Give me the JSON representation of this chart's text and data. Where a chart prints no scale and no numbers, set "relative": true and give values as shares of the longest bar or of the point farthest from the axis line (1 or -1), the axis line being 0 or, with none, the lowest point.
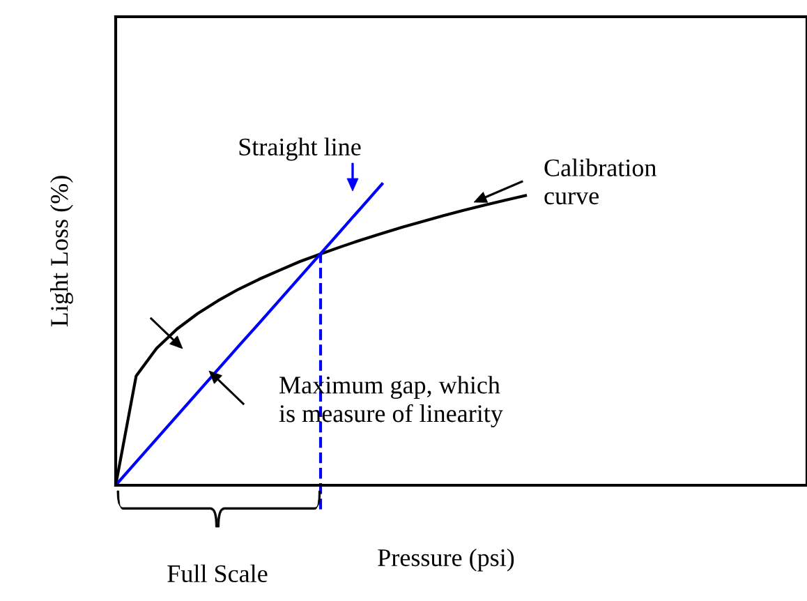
{
  "chart_data": {
    "type": "line",
    "relative": true,
    "xlabel": "Pressure (psi)",
    "ylabel": "Light Loss (%)",
    "categories": [
      null,
      null,
      null,
      null,
      null,
      null,
      null,
      null,
      null,
      null,
      null,
      null,
      null,
      null,
      null,
      null,
      null,
      null,
      null,
      null,
      null
    ],
    "series": [
      {
        "color": "#000000",
        "values": [
          0,
          0.363,
          0.455,
          0.519,
          0.57,
          0.613,
          0.651,
          0.684,
          0.714,
          0.743,
          0.768,
          0.792,
          0.815,
          0.836,
          0.857,
          0.876,
          0.895,
          0.913,
          0.93,
          0.946,
          0.962
        ]
      },
      {
        "color": "#0000ff",
        "values": [
          0,
          0.077,
          0.154,
          0.231,
          0.308,
          0.385,
          0.462,
          0.538,
          0.615,
          0.692,
          0.769,
          0.846,
          0.923,
          1.0,
          null,
          null,
          null,
          null,
          null,
          null,
          null
        ]
      }
    ],
    "annotations": [
      "Straight line",
      "Calibration\ncurve",
      "Maximum gap, which\nis measure of linearity",
      "Full Scale"
    ],
    "legend": false,
    "grid": false
  }
}
